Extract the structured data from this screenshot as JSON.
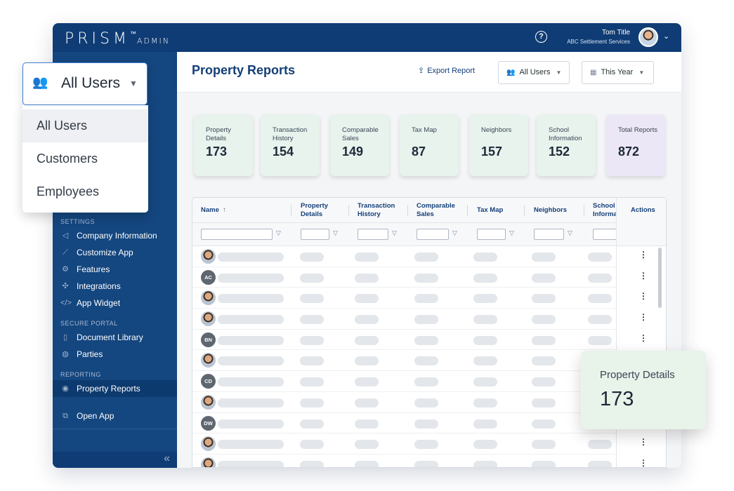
{
  "app": {
    "logo_main": "PRISM",
    "logo_tm": "™",
    "logo_sub": "ADMIN",
    "user_name": "Tom Title",
    "user_company": "ABC Settlement Services"
  },
  "sidebar": {
    "sections": [
      {
        "title": "SETTINGS",
        "items": [
          {
            "label": "Company Information",
            "icon": "megaphone-icon"
          },
          {
            "label": "Customize App",
            "icon": "brush-icon"
          },
          {
            "label": "Features",
            "icon": "gear-icon"
          },
          {
            "label": "Integrations",
            "icon": "puzzle-icon"
          },
          {
            "label": "App Widget",
            "icon": "code-icon"
          }
        ]
      },
      {
        "title": "SECURE PORTAL",
        "items": [
          {
            "label": "Document Library",
            "icon": "document-icon"
          },
          {
            "label": "Parties",
            "icon": "globe-icon"
          }
        ]
      },
      {
        "title": "REPORTING",
        "items": [
          {
            "label": "Property Reports",
            "icon": "location-pin-icon",
            "active": true
          }
        ]
      }
    ],
    "open_app": "Open App",
    "collapse": "«"
  },
  "header": {
    "title": "Property Reports",
    "export_label": "Export Report",
    "users_filter": "All Users",
    "period_filter": "This Year"
  },
  "stats": [
    {
      "label": "Property Details",
      "value": "173"
    },
    {
      "label": "Transaction History",
      "value": "154"
    },
    {
      "label": "Comparable Sales",
      "value": "149"
    },
    {
      "label": "Tax Map",
      "value": "87"
    },
    {
      "label": "Neighbors",
      "value": "157"
    },
    {
      "label": "School Information",
      "value": "152"
    },
    {
      "label": "Total Reports",
      "value": "872"
    }
  ],
  "table": {
    "columns": [
      "Name",
      "Property Details",
      "Transaction History",
      "Comparable Sales",
      "Tax Map",
      "Neighbors",
      "School Information",
      "Actions"
    ],
    "sort_indicator": "↑",
    "rows": [
      {
        "avatar": "photo",
        "initials": ""
      },
      {
        "avatar": "initials",
        "initials": "AC"
      },
      {
        "avatar": "photo",
        "initials": ""
      },
      {
        "avatar": "photo",
        "initials": ""
      },
      {
        "avatar": "initials",
        "initials": "BN"
      },
      {
        "avatar": "photo",
        "initials": ""
      },
      {
        "avatar": "initials",
        "initials": "CD"
      },
      {
        "avatar": "photo",
        "initials": ""
      },
      {
        "avatar": "initials",
        "initials": "DW"
      },
      {
        "avatar": "photo",
        "initials": ""
      },
      {
        "avatar": "photo",
        "initials": ""
      }
    ]
  },
  "dropdown": {
    "selected": "All Users",
    "options": [
      "All Users",
      "Customers",
      "Employees"
    ]
  },
  "highlight_card": {
    "label": "Property Details",
    "value": "173"
  },
  "colors": {
    "navy": "#0f3c74",
    "sidebar": "#14467f",
    "card_green": "#e7f3ec",
    "card_purple": "#ece7f6",
    "accent_blue": "#3f7fcf"
  }
}
